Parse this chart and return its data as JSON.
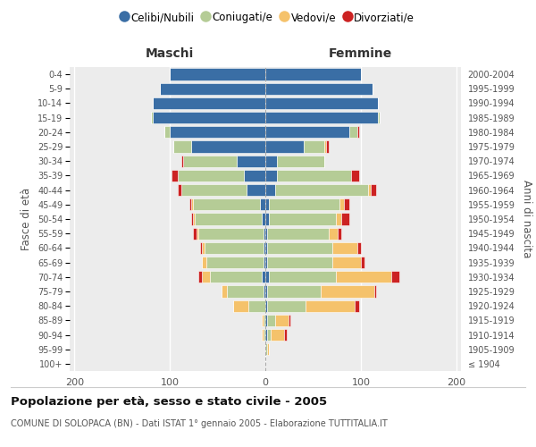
{
  "age_groups": [
    "100+",
    "95-99",
    "90-94",
    "85-89",
    "80-84",
    "75-79",
    "70-74",
    "65-69",
    "60-64",
    "55-59",
    "50-54",
    "45-49",
    "40-44",
    "35-39",
    "30-34",
    "25-29",
    "20-24",
    "15-19",
    "10-14",
    "5-9",
    "0-4"
  ],
  "birth_years": [
    "≤ 1904",
    "1905-1909",
    "1910-1914",
    "1915-1919",
    "1920-1924",
    "1925-1929",
    "1930-1934",
    "1935-1939",
    "1940-1944",
    "1945-1949",
    "1950-1954",
    "1955-1959",
    "1960-1964",
    "1965-1969",
    "1970-1974",
    "1975-1979",
    "1980-1984",
    "1985-1989",
    "1990-1994",
    "1995-1999",
    "2000-2004"
  ],
  "maschi": {
    "celibe": [
      0,
      0,
      0,
      0,
      0,
      2,
      4,
      2,
      2,
      2,
      4,
      6,
      20,
      22,
      30,
      78,
      100,
      118,
      118,
      110,
      100
    ],
    "coniugato": [
      0,
      0,
      2,
      2,
      18,
      38,
      54,
      60,
      62,
      68,
      70,
      70,
      68,
      70,
      56,
      18,
      6,
      2,
      0,
      0,
      0
    ],
    "vedovo": [
      0,
      0,
      2,
      2,
      16,
      6,
      8,
      4,
      2,
      2,
      2,
      2,
      0,
      0,
      0,
      0,
      0,
      0,
      0,
      0,
      0
    ],
    "divorziato": [
      0,
      0,
      0,
      0,
      0,
      0,
      4,
      0,
      2,
      4,
      2,
      2,
      4,
      6,
      2,
      0,
      0,
      0,
      0,
      0,
      0
    ]
  },
  "femmine": {
    "nubile": [
      0,
      0,
      2,
      2,
      2,
      2,
      4,
      2,
      2,
      2,
      4,
      4,
      10,
      12,
      12,
      40,
      88,
      118,
      118,
      112,
      100
    ],
    "coniugata": [
      0,
      2,
      4,
      8,
      40,
      56,
      70,
      68,
      68,
      64,
      70,
      74,
      98,
      78,
      50,
      22,
      8,
      2,
      0,
      0,
      0
    ],
    "vedova": [
      0,
      2,
      14,
      14,
      52,
      56,
      58,
      30,
      26,
      10,
      6,
      4,
      2,
      0,
      0,
      2,
      0,
      0,
      0,
      0,
      0
    ],
    "divorziata": [
      0,
      0,
      2,
      2,
      4,
      2,
      8,
      4,
      4,
      4,
      8,
      6,
      6,
      8,
      0,
      2,
      2,
      0,
      0,
      0,
      0
    ]
  },
  "colors": {
    "celibe": "#3a6ea5",
    "coniugato": "#b5cc96",
    "vedovo": "#f5c26b",
    "divorziato": "#cc2222"
  },
  "legend_labels": [
    "Celibi/Nubili",
    "Coniugati/e",
    "Vedovi/e",
    "Divorziati/e"
  ],
  "title_main": "Popolazione per età, sesso e stato civile - 2005",
  "title_sub": "COMUNE DI SOLOPACA (BN) - Dati ISTAT 1° gennaio 2005 - Elaborazione TUTTITALIA.IT",
  "xlabel_left": "Maschi",
  "xlabel_right": "Femmine",
  "ylabel_left": "Fasce di età",
  "ylabel_right": "Anni di nascita",
  "xlim": 205,
  "background_color": "#ffffff",
  "plot_bg_color": "#ececec"
}
